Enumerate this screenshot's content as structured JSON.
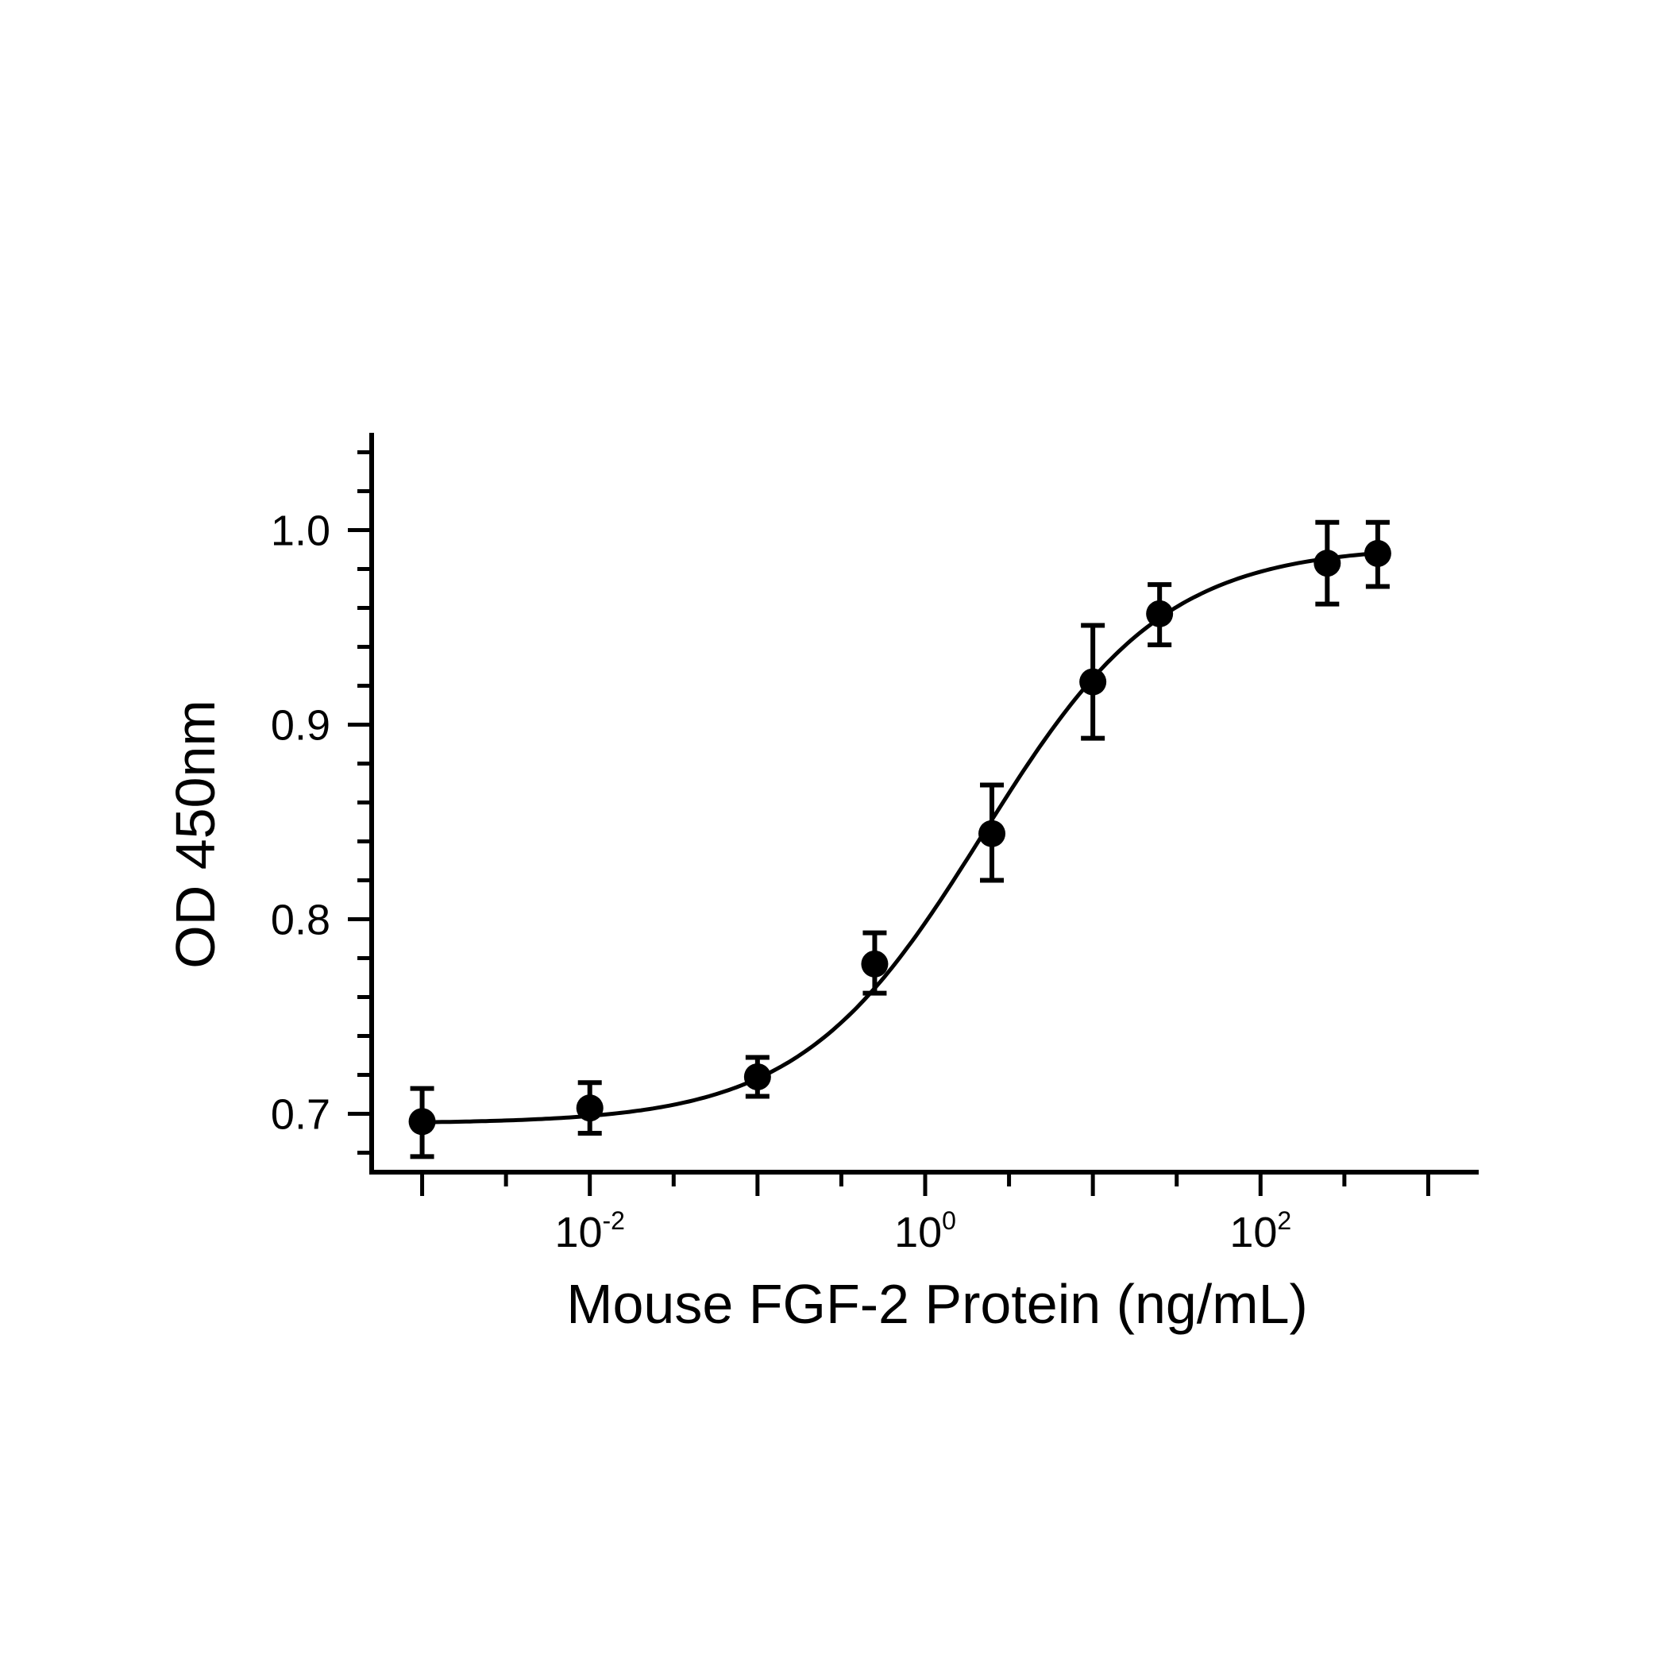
{
  "chart_data": {
    "type": "scatter",
    "xlabel": "Mouse FGF-2 Protein (ng/mL)",
    "ylabel": "OD 450nm",
    "x_scale": "log",
    "xlim": [
      0.0005,
      2000
    ],
    "ylim": [
      0.67,
      1.05
    ],
    "x_ticks": [
      {
        "value": 0.01,
        "base": "10",
        "exp": "-2"
      },
      {
        "value": 1,
        "base": "10",
        "exp": "0"
      },
      {
        "value": 100,
        "base": "10",
        "exp": "2"
      }
    ],
    "y_ticks": [
      {
        "value": 0.7,
        "label": "0.7"
      },
      {
        "value": 0.8,
        "label": "0.8"
      },
      {
        "value": 0.9,
        "label": "0.9"
      },
      {
        "value": 1.0,
        "label": "1.0"
      }
    ],
    "grid": false,
    "legend": "none",
    "color": "#000000",
    "points": [
      {
        "x": 0.001,
        "y": 0.696,
        "err_low": 0.678,
        "err_high": 0.713
      },
      {
        "x": 0.01,
        "y": 0.703,
        "err_low": 0.69,
        "err_high": 0.716
      },
      {
        "x": 0.1,
        "y": 0.719,
        "err_low": 0.709,
        "err_high": 0.729
      },
      {
        "x": 0.5,
        "y": 0.777,
        "err_low": 0.762,
        "err_high": 0.793
      },
      {
        "x": 2.5,
        "y": 0.844,
        "err_low": 0.82,
        "err_high": 0.869
      },
      {
        "x": 10,
        "y": 0.922,
        "err_low": 0.893,
        "err_high": 0.951
      },
      {
        "x": 25,
        "y": 0.957,
        "err_low": 0.941,
        "err_high": 0.972
      },
      {
        "x": 250,
        "y": 0.983,
        "err_low": 0.962,
        "err_high": 1.004
      },
      {
        "x": 500,
        "y": 0.988,
        "err_low": 0.971,
        "err_high": 1.004
      }
    ],
    "fit_curve": {
      "model": "4PL",
      "bottom": 0.695,
      "top": 0.992,
      "ec50": 2.2,
      "hill": 0.8,
      "x_range": [
        0.001,
        500
      ]
    }
  }
}
